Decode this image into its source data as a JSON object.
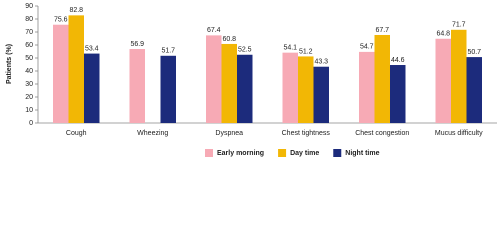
{
  "chart_data": {
    "type": "bar",
    "y_label": "Patients (%)",
    "categories": [
      "Cough",
      "Wheezing",
      "Dyspnea",
      "Chest tightness",
      "Chest congestion",
      "Mucus difficulty"
    ],
    "series": [
      {
        "name": "Early morning",
        "color": "#f7aab5",
        "values": [
          75.6,
          56.9,
          67.4,
          54.1,
          54.7,
          64.8
        ]
      },
      {
        "name": "Day time",
        "color": "#f2b705",
        "values": [
          82.8,
          null,
          60.8,
          51.2,
          67.7,
          71.7
        ]
      },
      {
        "name": "Night time",
        "color": "#1c2b7c",
        "values": [
          53.4,
          51.7,
          52.5,
          43.3,
          44.6,
          50.7
        ]
      }
    ],
    "ylim": [
      0,
      90
    ],
    "yticks": [
      0,
      10,
      20,
      30,
      40,
      50,
      60,
      70,
      80,
      90
    ],
    "grid": false,
    "legend": "bottom"
  }
}
